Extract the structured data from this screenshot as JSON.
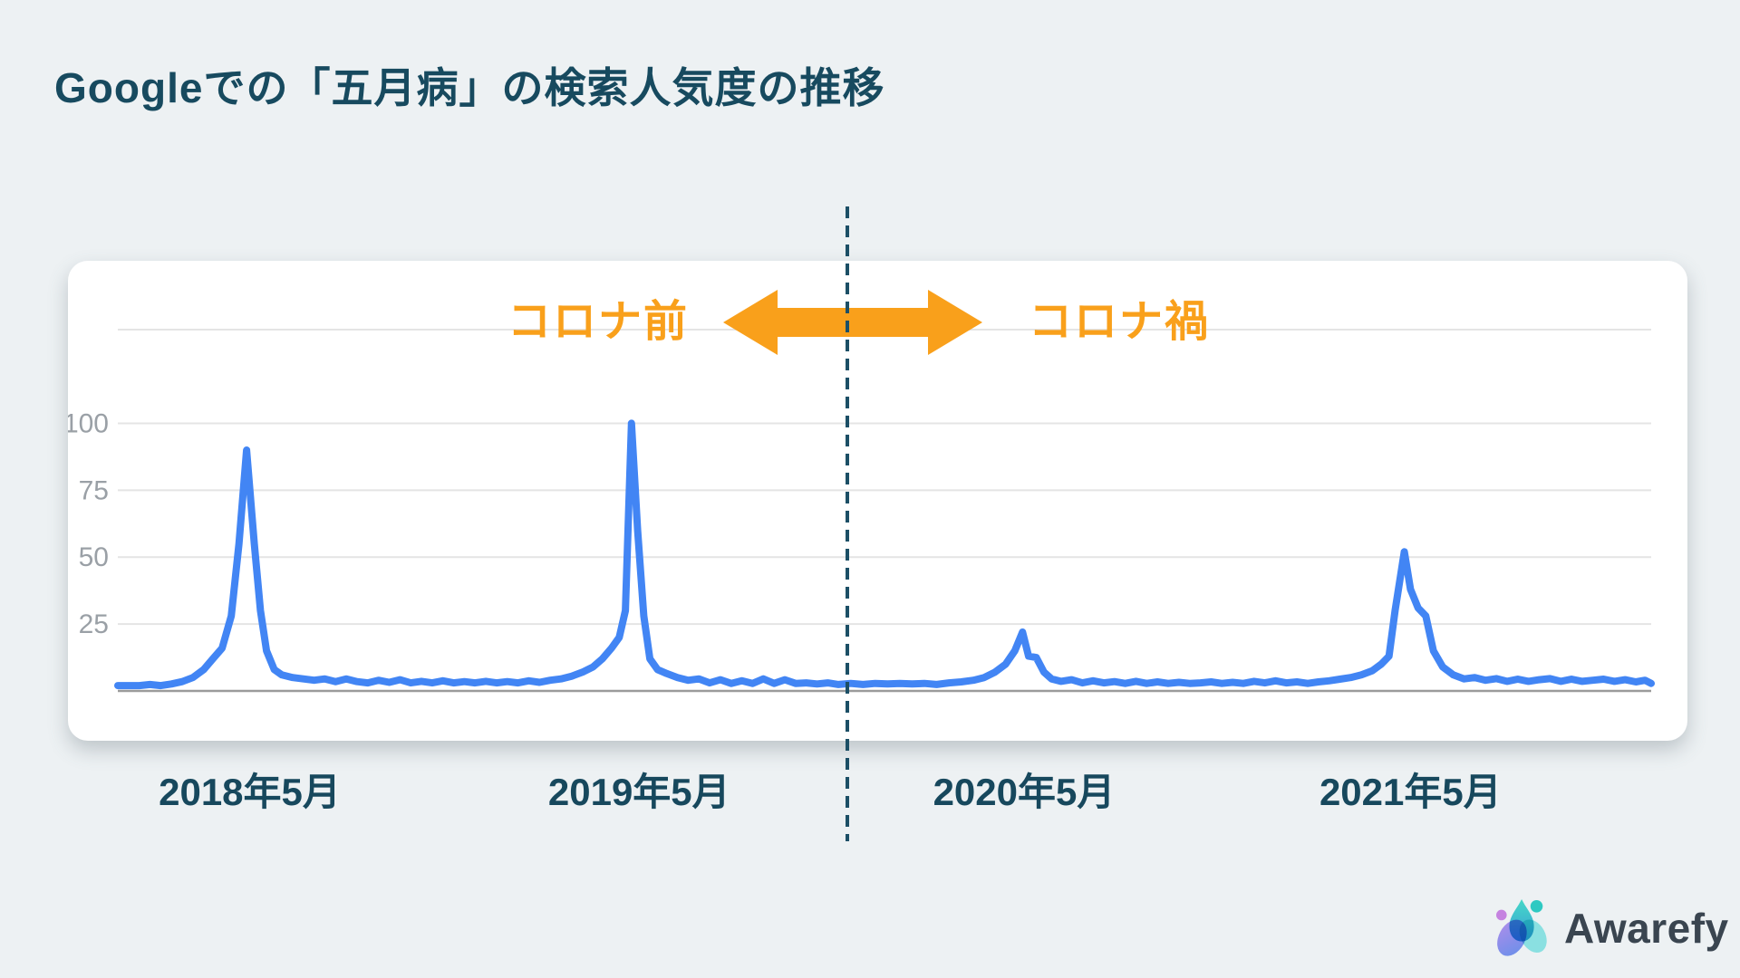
{
  "page": {
    "background_color": "#EDF1F3",
    "title": "Googleでの「五月病」の検索人気度の推移",
    "title_color": "#174A5F"
  },
  "annotation": {
    "pre_label": "コロナ前",
    "post_label": "コロナ禍",
    "label_color": "#F9A01B",
    "arrow_color": "#F9A01B",
    "divider_color": "#1C4F66"
  },
  "chart_data": {
    "type": "line",
    "title": "Googleでの「五月病」の検索人気度の推移",
    "xlabel": "",
    "ylabel": "",
    "grid": true,
    "legend": "none",
    "ylim": [
      0,
      135
    ],
    "y_ticks": [
      100,
      75,
      50,
      25
    ],
    "axis_label_color": "#9AA0A6",
    "gridline_color": "#E4E4E4",
    "baseline_color": "#9B9B9B",
    "line_color": "#4285F4",
    "x_tick_color": "#17485D",
    "x_tick_labels": [
      {
        "label": "2018年5月",
        "pct": 8.6
      },
      {
        "label": "2019年5月",
        "pct": 34.0
      },
      {
        "label": "2020年5月",
        "pct": 59.1
      },
      {
        "label": "2021年5月",
        "pct": 84.3
      }
    ],
    "divider_pct": 47.6,
    "annual_peaks": [
      {
        "label": "2018年5月",
        "value": 90
      },
      {
        "label": "2019年5月",
        "value": 100
      },
      {
        "label": "2020年5月",
        "value": 22
      },
      {
        "label": "2021年5月",
        "value": 52
      }
    ],
    "series": [
      {
        "name": "五月病",
        "points": [
          [
            0,
            2
          ],
          [
            0.7,
            2
          ],
          [
            1.4,
            2
          ],
          [
            2.1,
            2.4
          ],
          [
            2.8,
            2
          ],
          [
            3.5,
            2.6
          ],
          [
            4.2,
            3.5
          ],
          [
            4.9,
            5
          ],
          [
            5.6,
            8
          ],
          [
            6.2,
            12
          ],
          [
            6.8,
            16
          ],
          [
            7.4,
            28
          ],
          [
            7.9,
            55
          ],
          [
            8.4,
            90
          ],
          [
            8.9,
            55
          ],
          [
            9.3,
            30
          ],
          [
            9.7,
            15
          ],
          [
            10.2,
            8
          ],
          [
            10.7,
            6
          ],
          [
            11.4,
            5
          ],
          [
            12.1,
            4.5
          ],
          [
            12.8,
            4
          ],
          [
            13.5,
            4.5
          ],
          [
            14.2,
            3.5
          ],
          [
            14.9,
            4.5
          ],
          [
            15.6,
            3.5
          ],
          [
            16.3,
            3
          ],
          [
            17,
            4
          ],
          [
            17.7,
            3.2
          ],
          [
            18.4,
            4.2
          ],
          [
            19.1,
            3
          ],
          [
            19.8,
            3.6
          ],
          [
            20.5,
            3
          ],
          [
            21.2,
            3.8
          ],
          [
            21.9,
            3
          ],
          [
            22.6,
            3.5
          ],
          [
            23.3,
            3
          ],
          [
            24,
            3.6
          ],
          [
            24.7,
            3
          ],
          [
            25.4,
            3.5
          ],
          [
            26.1,
            3
          ],
          [
            26.8,
            3.8
          ],
          [
            27.5,
            3.2
          ],
          [
            28.2,
            4
          ],
          [
            28.9,
            4.5
          ],
          [
            29.6,
            5.5
          ],
          [
            30.3,
            7
          ],
          [
            31,
            9
          ],
          [
            31.6,
            12
          ],
          [
            32.2,
            16
          ],
          [
            32.7,
            20
          ],
          [
            33.1,
            30
          ],
          [
            33.5,
            100
          ],
          [
            33.9,
            60
          ],
          [
            34.3,
            28
          ],
          [
            34.7,
            12
          ],
          [
            35.2,
            8
          ],
          [
            35.8,
            6.5
          ],
          [
            36.5,
            5
          ],
          [
            37.2,
            4
          ],
          [
            37.9,
            4.5
          ],
          [
            38.6,
            3
          ],
          [
            39.3,
            4.2
          ],
          [
            40,
            2.8
          ],
          [
            40.7,
            3.8
          ],
          [
            41.4,
            2.8
          ],
          [
            42.1,
            4.5
          ],
          [
            42.8,
            2.8
          ],
          [
            43.5,
            4.2
          ],
          [
            44.2,
            2.8
          ],
          [
            44.9,
            3
          ],
          [
            45.6,
            2.6
          ],
          [
            46.3,
            3
          ],
          [
            47,
            2.4
          ],
          [
            47.8,
            2.8
          ],
          [
            48.6,
            2.4
          ],
          [
            49.4,
            2.8
          ],
          [
            50.2,
            2.6
          ],
          [
            51,
            2.8
          ],
          [
            51.8,
            2.6
          ],
          [
            52.6,
            2.8
          ],
          [
            53.4,
            2.4
          ],
          [
            54.2,
            3
          ],
          [
            55,
            3.4
          ],
          [
            55.8,
            4
          ],
          [
            56.5,
            5
          ],
          [
            57.2,
            7
          ],
          [
            57.9,
            10
          ],
          [
            58.5,
            15
          ],
          [
            59,
            22
          ],
          [
            59.4,
            13
          ],
          [
            59.9,
            12.5
          ],
          [
            60.4,
            7
          ],
          [
            60.9,
            4.5
          ],
          [
            61.5,
            3.6
          ],
          [
            62.2,
            4.2
          ],
          [
            62.9,
            3
          ],
          [
            63.6,
            3.8
          ],
          [
            64.3,
            3
          ],
          [
            65,
            3.5
          ],
          [
            65.7,
            2.8
          ],
          [
            66.4,
            3.6
          ],
          [
            67.1,
            2.8
          ],
          [
            67.8,
            3.4
          ],
          [
            68.5,
            2.8
          ],
          [
            69.2,
            3.2
          ],
          [
            69.9,
            2.8
          ],
          [
            70.6,
            3
          ],
          [
            71.3,
            3.4
          ],
          [
            72,
            2.8
          ],
          [
            72.7,
            3.2
          ],
          [
            73.4,
            2.8
          ],
          [
            74.1,
            3.6
          ],
          [
            74.8,
            3
          ],
          [
            75.5,
            3.8
          ],
          [
            76.2,
            3
          ],
          [
            76.9,
            3.4
          ],
          [
            77.6,
            2.8
          ],
          [
            78.3,
            3.4
          ],
          [
            79,
            3.8
          ],
          [
            79.7,
            4.4
          ],
          [
            80.4,
            5
          ],
          [
            81.1,
            6
          ],
          [
            81.8,
            7.5
          ],
          [
            82.4,
            10
          ],
          [
            82.9,
            13
          ],
          [
            83.3,
            30
          ],
          [
            83.9,
            52
          ],
          [
            84.3,
            38
          ],
          [
            84.8,
            31
          ],
          [
            85.3,
            28
          ],
          [
            85.8,
            15
          ],
          [
            86.4,
            9
          ],
          [
            87.1,
            6
          ],
          [
            87.8,
            4.5
          ],
          [
            88.5,
            5
          ],
          [
            89.2,
            4
          ],
          [
            89.9,
            4.6
          ],
          [
            90.6,
            3.6
          ],
          [
            91.3,
            4.4
          ],
          [
            92,
            3.6
          ],
          [
            92.7,
            4.2
          ],
          [
            93.4,
            4.6
          ],
          [
            94.1,
            3.6
          ],
          [
            94.8,
            4.4
          ],
          [
            95.5,
            3.6
          ],
          [
            96.2,
            4
          ],
          [
            96.9,
            4.4
          ],
          [
            97.6,
            3.6
          ],
          [
            98.3,
            4.2
          ],
          [
            99,
            3.4
          ],
          [
            99.6,
            4
          ],
          [
            100,
            2.8
          ]
        ]
      }
    ]
  },
  "logo": {
    "text": "Awarefy",
    "text_color": "#3A4550",
    "mark_colors": {
      "droplet_top": "#3DD6C3",
      "droplet_bottom": "#2D9BD6",
      "petal_left_top": "#A57BE8",
      "petal_left_bottom": "#4E7FE8",
      "petal_right": "#5FD9D9",
      "dot_left": "#C583E0",
      "dot_right": "#2FC9C2"
    }
  }
}
